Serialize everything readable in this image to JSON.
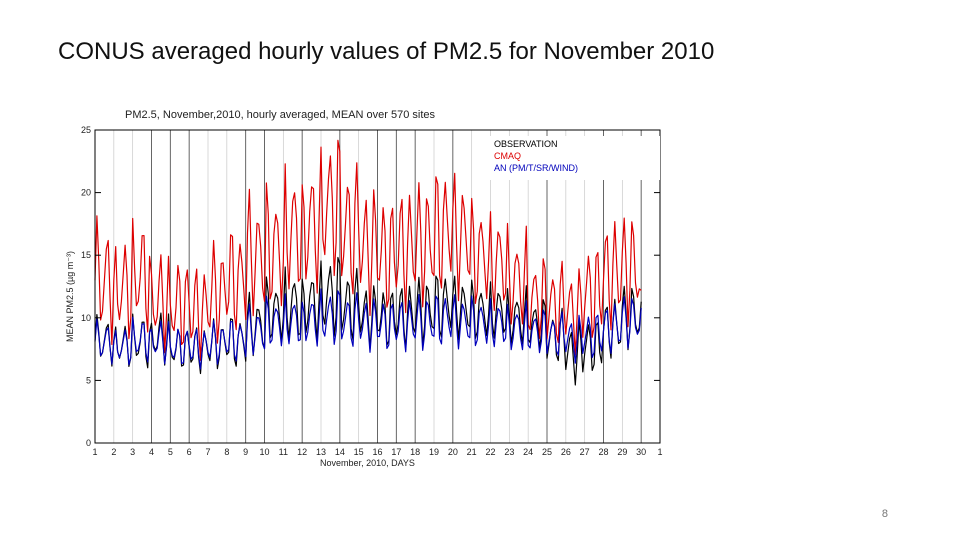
{
  "slide": {
    "title": "CONUS averaged hourly values of PM2.5 for November 2010",
    "page_number": "8"
  },
  "chart_data": {
    "type": "line",
    "title": "PM2.5, November,2010, hourly averaged, MEAN over 570 sites",
    "xlabel": "November, 2010, DAYS",
    "ylabel": "MEAN PM2.5 (µg m⁻³)",
    "xlim": [
      1,
      31
    ],
    "ylim": [
      0,
      25
    ],
    "x_ticks": [
      1,
      2,
      3,
      4,
      5,
      6,
      7,
      8,
      9,
      10,
      11,
      12,
      13,
      14,
      15,
      16,
      17,
      18,
      19,
      20,
      21,
      22,
      23,
      24,
      25,
      26,
      27,
      28,
      29,
      30,
      31
    ],
    "x_tick_labels": [
      "1",
      "2",
      "3",
      "4",
      "5",
      "6",
      "7",
      "8",
      "9",
      "10",
      "11",
      "12",
      "13",
      "14",
      "15",
      "16",
      "17",
      "18",
      "19",
      "20",
      "21",
      "22",
      "23",
      "24",
      "25",
      "26",
      "27",
      "28",
      "29",
      "30",
      "1"
    ],
    "y_ticks": [
      0,
      5,
      10,
      15,
      20,
      25
    ],
    "vertical_lines_dark": [
      4,
      5,
      6,
      9,
      10,
      12,
      14,
      16,
      17,
      18,
      20,
      25,
      28,
      30
    ],
    "legend": [
      {
        "label": "OBSERVATION",
        "color": "#000000"
      },
      {
        "label": "CMAQ",
        "color": "#dd0000"
      },
      {
        "label": "AN (PM/T/SR/WIND)",
        "color": "#0000bb"
      }
    ],
    "series": [
      {
        "name": "OBSERVATION",
        "color": "#000000",
        "daily_mean": [
          8.2,
          7.9,
          8.2,
          8.5,
          7.6,
          7.5,
          7.9,
          8.1,
          9.4,
          10.5,
          11.0,
          11.2,
          11.8,
          11.0,
          10.2,
          10.0,
          10.2,
          10.6,
          11.0,
          10.8,
          10.5,
          10.6,
          10.0,
          9.5,
          8.5,
          7.2,
          7.8,
          9.2,
          10.2,
          9.5
        ],
        "daily_amplitude": [
          1.6,
          1.5,
          1.8,
          1.7,
          1.4,
          1.5,
          1.6,
          1.8,
          2.0,
          2.2,
          2.6,
          2.5,
          2.8,
          2.4,
          2.0,
          2.0,
          2.1,
          2.2,
          2.3,
          2.0,
          2.0,
          2.0,
          1.9,
          1.7,
          1.8,
          2.0,
          1.8,
          1.9,
          2.1,
          1.8
        ]
      },
      {
        "name": "CMAQ",
        "color": "#dd0000",
        "daily_mean": [
          13.0,
          12.5,
          13.5,
          11.5,
          11.0,
          10.5,
          12.0,
          13.0,
          15.0,
          15.5,
          17.0,
          17.5,
          19.0,
          17.0,
          15.5,
          15.0,
          15.5,
          16.0,
          17.0,
          16.5,
          15.0,
          14.5,
          13.0,
          11.5,
          11.0,
          10.5,
          12.0,
          13.5,
          14.0,
          10.0
        ],
        "daily_amplitude": [
          4.0,
          3.5,
          3.8,
          3.2,
          3.0,
          3.0,
          3.3,
          3.6,
          4.0,
          4.2,
          4.5,
          4.6,
          4.8,
          4.4,
          4.0,
          3.8,
          3.9,
          4.0,
          4.2,
          4.0,
          3.6,
          3.5,
          3.2,
          2.8,
          2.8,
          2.7,
          3.2,
          3.5,
          3.6,
          2.2
        ]
      },
      {
        "name": "AN (PM/T/SR/WIND)",
        "color": "#0000bb",
        "daily_mean": [
          8.1,
          7.8,
          8.3,
          8.2,
          7.7,
          7.6,
          8.0,
          8.2,
          9.0,
          9.6,
          9.8,
          9.9,
          10.1,
          9.8,
          9.5,
          9.4,
          9.5,
          9.7,
          9.9,
          9.7,
          9.6,
          9.6,
          9.2,
          8.9,
          8.6,
          8.3,
          8.6,
          9.2,
          9.8,
          9.3
        ],
        "daily_amplitude": [
          1.4,
          1.3,
          1.5,
          1.4,
          1.3,
          1.3,
          1.4,
          1.5,
          1.6,
          1.7,
          1.8,
          1.8,
          1.9,
          1.8,
          1.7,
          1.7,
          1.7,
          1.8,
          1.8,
          1.7,
          1.7,
          1.7,
          1.6,
          1.5,
          1.5,
          1.5,
          1.6,
          1.6,
          1.7,
          1.5
        ]
      }
    ]
  }
}
